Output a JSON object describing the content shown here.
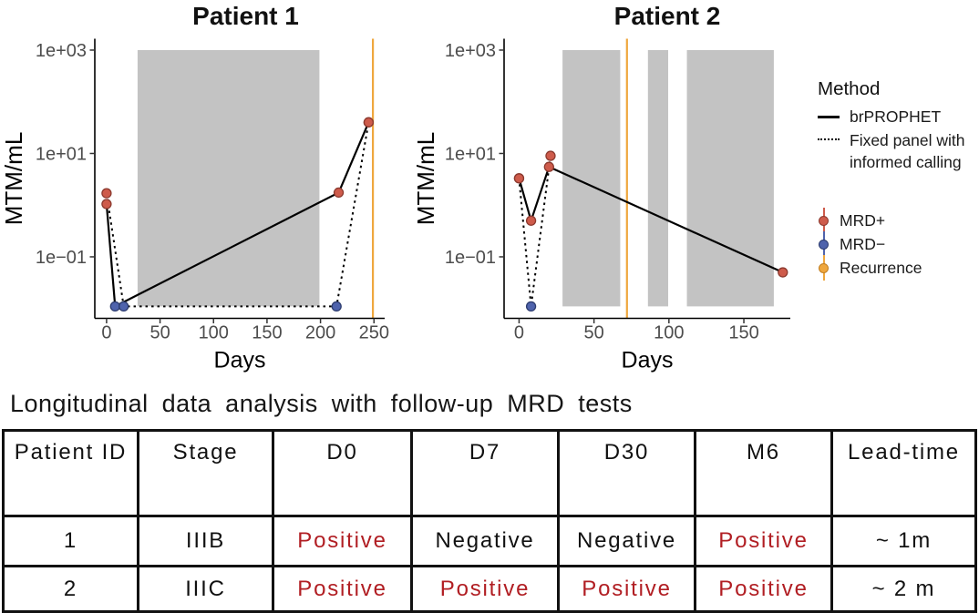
{
  "colors": {
    "mrd_positive_point": "#CE5B4B",
    "mrd_positive_stroke": "#8C3A2F",
    "mrd_negative_point": "#4F63AC",
    "mrd_negative_stroke": "#2C3B6E",
    "recurrence": "#EFA73E",
    "recurrence_stroke": "#C07E22",
    "shaded_region": "#C3C3C3",
    "axis_text": "#4D4D4D",
    "table_positive_text": "#B11E23",
    "line": "#000000"
  },
  "chart_data": [
    {
      "type": "line",
      "title": "Patient 1",
      "xlabel": "Days",
      "ylabel": "MTM/mL",
      "x_ticks": [
        0,
        50,
        100,
        150,
        200,
        250
      ],
      "y_ticks": [
        {
          "label": "1e+03",
          "value": 1000
        },
        {
          "label": "1e+01",
          "value": 10
        },
        {
          "label": "1e−01",
          "value": 0.1
        }
      ],
      "xlim": [
        -11,
        260
      ],
      "ylim_log10": [
        -2.19,
        3.22
      ],
      "shaded_day_ranges": [
        [
          29,
          199
        ]
      ],
      "recurrence_day": 249,
      "series": [
        {
          "name": "brPROPHET",
          "line_style": "solid",
          "points": [
            {
              "day": 0,
              "mtm": 1.05,
              "status": "MRD+"
            },
            {
              "day": 8,
              "mtm": 0.011,
              "status": "MRD-"
            },
            {
              "day": 217,
              "mtm": 1.75,
              "status": "MRD+"
            },
            {
              "day": 245,
              "mtm": 40,
              "status": "MRD+"
            }
          ]
        },
        {
          "name": "Fixed panel with informed calling",
          "line_style": "dashed",
          "points": [
            {
              "day": 0,
              "mtm": 1.7,
              "status": "MRD+"
            },
            {
              "day": 16,
              "mtm": 0.011,
              "status": "MRD-"
            },
            {
              "day": 215,
              "mtm": 0.011,
              "status": "MRD-"
            },
            {
              "day": 245,
              "mtm": 40,
              "status": "MRD+"
            }
          ]
        }
      ]
    },
    {
      "type": "line",
      "title": "Patient 2",
      "xlabel": "Days",
      "ylabel": "MTM/mL",
      "x_ticks": [
        0,
        50,
        100,
        150
      ],
      "y_ticks": [
        {
          "label": "1e+03",
          "value": 1000
        },
        {
          "label": "1e+01",
          "value": 10
        },
        {
          "label": "1e−01",
          "value": 0.1
        }
      ],
      "xlim": [
        -10,
        181
      ],
      "ylim_log10": [
        -2.19,
        3.22
      ],
      "shaded_day_ranges": [
        [
          29,
          67.5
        ],
        [
          86,
          99.5
        ],
        [
          112,
          170
        ]
      ],
      "recurrence_day": 72,
      "series": [
        {
          "name": "brPROPHET",
          "line_style": "solid",
          "points": [
            {
              "day": 0,
              "mtm": 3.3,
              "status": "MRD+"
            },
            {
              "day": 8,
              "mtm": 0.5,
              "status": "MRD+"
            },
            {
              "day": 20,
              "mtm": 5.5,
              "status": "MRD+"
            },
            {
              "day": 176,
              "mtm": 0.05,
              "status": "MRD+"
            }
          ]
        },
        {
          "name": "Fixed panel with informed calling",
          "line_style": "dashed",
          "points": [
            {
              "day": 0,
              "mtm": 3.3,
              "status": "MRD+"
            },
            {
              "day": 8,
              "mtm": 0.011,
              "status": "MRD-"
            },
            {
              "day": 21,
              "mtm": 9,
              "status": "MRD+"
            }
          ]
        }
      ]
    },
    {
      "type": "table",
      "caption": "Longitudinal data analysis with follow-up MRD tests",
      "headers": [
        "Patient ID",
        "Stage",
        "D0",
        "D7",
        "D30",
        "M6",
        "Lead-time"
      ],
      "rows": [
        [
          "1",
          "IIIB",
          "Positive",
          "Negative",
          "Negative",
          "Positive",
          "~ 1m"
        ],
        [
          "2",
          "IIIC",
          "Positive",
          "Positive",
          "Positive",
          "Positive",
          "~ 2 m"
        ]
      ]
    }
  ],
  "legend": {
    "title": "Method",
    "line_items": [
      {
        "label_lines": [
          "brPROPHET"
        ],
        "line_style": "solid"
      },
      {
        "label_lines": [
          "Fixed panel with",
          "informed calling"
        ],
        "line_style": "dashed"
      }
    ],
    "point_items": [
      {
        "label": "MRD+",
        "color_key": "mrd_positive"
      },
      {
        "label": "MRD−",
        "color_key": "mrd_negative"
      },
      {
        "label": "Recurrence",
        "color_key": "recurrence"
      }
    ]
  }
}
